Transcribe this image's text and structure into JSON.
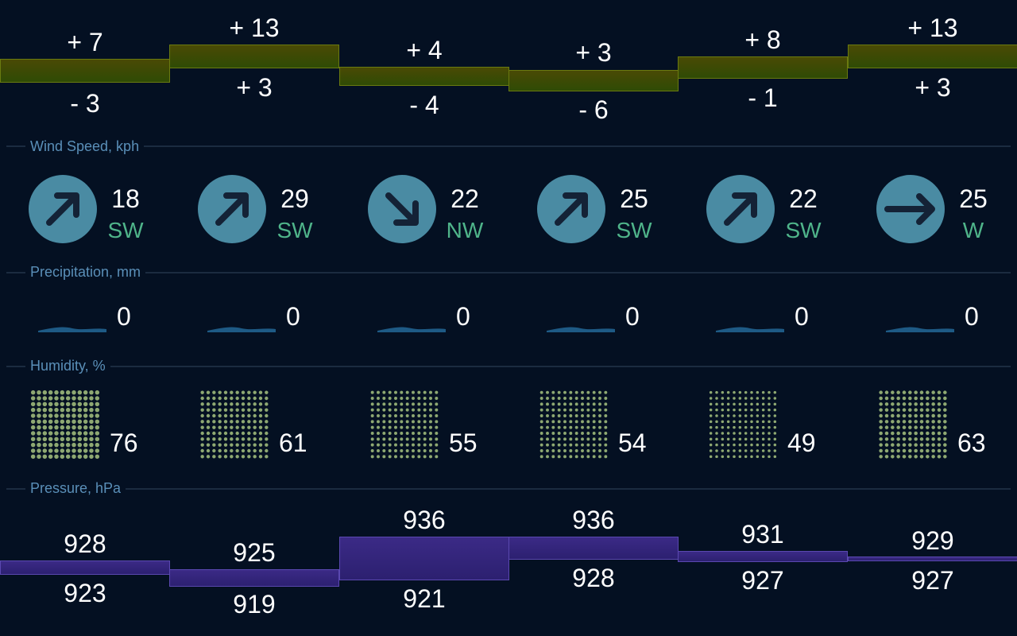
{
  "days": [
    {
      "temp_high": "+ 7",
      "temp_low": "- 3",
      "wind_speed": "18",
      "wind_dir": "SW",
      "wind_icon": "arrow-up-right-icon",
      "precip": "0",
      "humidity": "76",
      "humidity_level": 0.76,
      "press_high": "928",
      "press_low": "923"
    },
    {
      "temp_high": "+ 13",
      "temp_low": "+ 3",
      "wind_speed": "29",
      "wind_dir": "SW",
      "wind_icon": "arrow-up-right-icon",
      "precip": "0",
      "humidity": "61",
      "humidity_level": 0.61,
      "press_high": "925",
      "press_low": "919"
    },
    {
      "temp_high": "+ 4",
      "temp_low": "- 4",
      "wind_speed": "22",
      "wind_dir": "NW",
      "wind_icon": "arrow-down-right-icon",
      "precip": "0",
      "humidity": "55",
      "humidity_level": 0.55,
      "press_high": "936",
      "press_low": "921"
    },
    {
      "temp_high": "+ 3",
      "temp_low": "- 6",
      "wind_speed": "25",
      "wind_dir": "SW",
      "wind_icon": "arrow-up-right-icon",
      "precip": "0",
      "humidity": "54",
      "humidity_level": 0.54,
      "press_high": "936",
      "press_low": "928"
    },
    {
      "temp_high": "+ 8",
      "temp_low": "- 1",
      "wind_speed": "22",
      "wind_dir": "SW",
      "wind_icon": "arrow-up-right-icon",
      "precip": "0",
      "humidity": "49",
      "humidity_level": 0.49,
      "press_high": "931",
      "press_low": "927"
    },
    {
      "temp_high": "+ 13",
      "temp_low": "+ 3",
      "wind_speed": "25",
      "wind_dir": "W",
      "wind_icon": "arrow-right-icon",
      "precip": "0",
      "humidity": "63",
      "humidity_level": 0.63,
      "press_high": "929",
      "press_low": "927"
    }
  ],
  "sections": {
    "wind": "Wind Speed, kph",
    "precip": "Precipitation, mm",
    "humidity": "Humidity, %",
    "pressure": "Pressure, hPa"
  },
  "colors": {
    "background": "#041022",
    "temp_bar": "#2f4b05",
    "pressure_bar": "#2c2070",
    "wind_circle": "#4a8ba3",
    "wind_dir": "#4fb48a",
    "section_label": "#5a8fb8",
    "humidity_dot": "#8ea872",
    "precip_wave": "#1e5a85"
  }
}
